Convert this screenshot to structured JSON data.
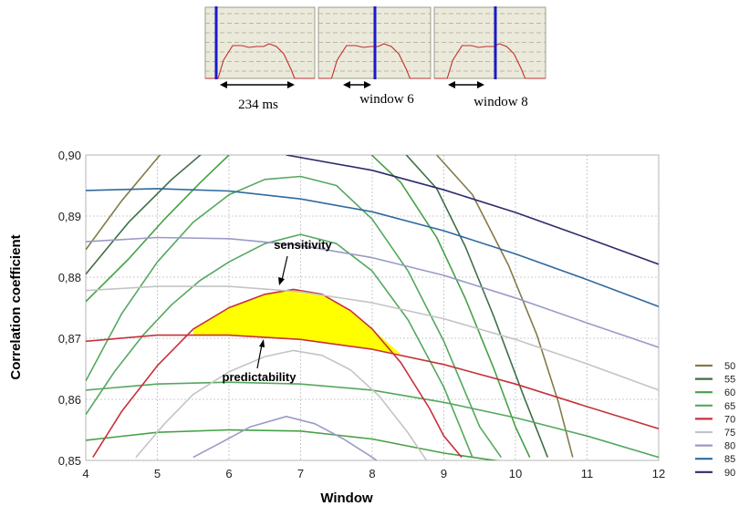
{
  "windows_panel": {
    "labels": [
      "234 ms",
      "window 6",
      "window 8"
    ]
  },
  "chart_data": {
    "type": "line",
    "xlabel": "Window",
    "ylabel": "Correlation coefficient",
    "xlim": [
      4,
      12
    ],
    "ylim": [
      0.85,
      0.9
    ],
    "x_ticks": [
      "4",
      "5",
      "6",
      "7",
      "8",
      "9",
      "10",
      "11",
      "12"
    ],
    "y_ticks": [
      "0,85",
      "0,86",
      "0,87",
      "0,88",
      "0,89",
      "0,90"
    ],
    "grid": true,
    "legend_position": "bottom-right",
    "legend": [
      "50",
      "55",
      "60",
      "65",
      "70",
      "75",
      "80",
      "85",
      "90"
    ],
    "annotations": [
      "sensitivity",
      "predictability"
    ],
    "highlight_color": "#ffff00",
    "series": [
      {
        "name": "50",
        "color": "#847b49",
        "lines": [
          {
            "x": [
              4.0,
              4.5,
              5.0,
              5.5
            ],
            "y": [
              0.8845,
              0.8925,
              0.8995,
              0.906
            ]
          },
          {
            "x": [
              8.9,
              9.4,
              9.9,
              10.3,
              10.6,
              10.8
            ],
            "y": [
              0.9,
              0.8935,
              0.882,
              0.8705,
              0.8595,
              0.8505
            ]
          }
        ]
      },
      {
        "name": "55",
        "color": "#3f6e46",
        "lines": [
          {
            "x": [
              4.0,
              4.6,
              5.2,
              5.7
            ],
            "y": [
              0.8805,
              0.889,
              0.896,
              0.901
            ]
          },
          {
            "x": [
              8.4,
              8.9,
              9.3,
              9.7,
              10.1,
              10.45
            ],
            "y": [
              0.901,
              0.8945,
              0.885,
              0.8735,
              0.861,
              0.8505
            ]
          }
        ]
      },
      {
        "name": "60",
        "color": "#46a046",
        "lines": [
          {
            "x": [
              4.0,
              4.6,
              5.1,
              5.6,
              6.0
            ],
            "y": [
              0.876,
              0.883,
              0.8895,
              0.8955,
              0.9
            ]
          },
          {
            "x": [
              7.9,
              8.4,
              8.9,
              9.3,
              9.7,
              10.0,
              10.2
            ],
            "y": [
              0.901,
              0.8955,
              0.8865,
              0.8765,
              0.865,
              0.8555,
              0.8505
            ]
          },
          {
            "x": [
              4.0,
              5.0,
              6.0,
              7.0,
              8.0,
              9.0,
              10.0
            ],
            "y": [
              0.8533,
              0.8546,
              0.855,
              0.8548,
              0.8535,
              0.8512,
              0.8495
            ]
          }
        ]
      },
      {
        "name": "65",
        "color": "#54a85e",
        "lines": [
          {
            "x": [
              4.0,
              4.5,
              5.0,
              5.5,
              6.0,
              6.5,
              7.0,
              7.5,
              8.0,
              8.5,
              9.0,
              9.5,
              9.8
            ],
            "y": [
              0.863,
              0.874,
              0.8825,
              0.889,
              0.8935,
              0.896,
              0.8965,
              0.895,
              0.8895,
              0.881,
              0.8695,
              0.8555,
              0.8505
            ]
          },
          {
            "x": [
              4.0,
              4.4,
              4.8,
              5.2,
              5.6,
              6.0,
              6.5,
              7.0,
              7.5,
              8.0,
              8.5,
              9.0,
              9.4
            ],
            "y": [
              0.8575,
              0.8645,
              0.8705,
              0.8755,
              0.8795,
              0.8825,
              0.8855,
              0.887,
              0.8855,
              0.881,
              0.873,
              0.862,
              0.8505
            ]
          },
          {
            "x": [
              4.0,
              5.0,
              6.0,
              7.0,
              8.0,
              9.0,
              10.0,
              11.0,
              12.0
            ],
            "y": [
              0.8615,
              0.8625,
              0.8628,
              0.8625,
              0.8615,
              0.8595,
              0.857,
              0.854,
              0.8505
            ]
          }
        ]
      },
      {
        "name": "70",
        "color": "#c8313a",
        "lines": [
          {
            "x": [
              4.0,
              5.0,
              6.0,
              7.0,
              8.0,
              9.0,
              10.0,
              11.0,
              12.0
            ],
            "y": [
              0.8695,
              0.8705,
              0.8705,
              0.8698,
              0.8682,
              0.8657,
              0.8625,
              0.8588,
              0.8552
            ]
          },
          {
            "x": [
              4.1,
              4.5,
              5.0,
              5.5,
              6.0,
              6.5,
              6.9,
              7.3,
              7.7,
              8.0,
              8.4,
              8.8,
              9.0,
              9.25
            ],
            "y": [
              0.8505,
              0.858,
              0.8655,
              0.8715,
              0.875,
              0.8772,
              0.878,
              0.8772,
              0.8745,
              0.8715,
              0.866,
              0.8585,
              0.854,
              0.8505
            ]
          }
        ]
      },
      {
        "name": "75",
        "color": "#c4c4c4",
        "lines": [
          {
            "x": [
              4.0,
              5.0,
              6.0,
              7.0,
              8.0,
              9.0,
              10.0,
              11.0,
              12.0
            ],
            "y": [
              0.8778,
              0.8785,
              0.8785,
              0.8776,
              0.8758,
              0.8732,
              0.8698,
              0.8658,
              0.8615
            ]
          },
          {
            "x": [
              4.7,
              5.1,
              5.5,
              6.0,
              6.5,
              6.9,
              7.3,
              7.7,
              8.1,
              8.5,
              8.9,
              9.1
            ],
            "y": [
              0.8505,
              0.856,
              0.8608,
              0.8645,
              0.867,
              0.868,
              0.8672,
              0.8648,
              0.8605,
              0.8545,
              0.8475,
              0.8445
            ]
          }
        ]
      },
      {
        "name": "80",
        "color": "#9a9ac8",
        "lines": [
          {
            "x": [
              4.0,
              5.0,
              6.0,
              7.0,
              8.0,
              9.0,
              10.0,
              11.0,
              12.0
            ],
            "y": [
              0.8858,
              0.8865,
              0.8863,
              0.8852,
              0.8832,
              0.8803,
              0.8766,
              0.8725,
              0.8685
            ]
          },
          {
            "x": [
              5.5,
              5.9,
              6.3,
              6.8,
              7.2,
              7.6,
              8.0,
              8.3
            ],
            "y": [
              0.8505,
              0.853,
              0.8555,
              0.8572,
              0.856,
              0.8535,
              0.8505,
              0.848
            ]
          }
        ]
      },
      {
        "name": "85",
        "color": "#2e6a9e",
        "lines": [
          {
            "x": [
              4.0,
              5.0,
              6.0,
              7.0,
              8.0,
              9.0,
              10.0,
              11.0,
              12.0
            ],
            "y": [
              0.8942,
              0.8945,
              0.8941,
              0.8928,
              0.8907,
              0.8876,
              0.8838,
              0.8796,
              0.8752
            ]
          }
        ]
      },
      {
        "name": "90",
        "color": "#2c2b6e",
        "lines": [
          {
            "x": [
              6.8,
              8.0,
              9.0,
              10.0,
              11.0,
              12.0
            ],
            "y": [
              0.9,
              0.8975,
              0.8943,
              0.8906,
              0.8864,
              0.8821
            ]
          }
        ]
      }
    ],
    "highlight_region": {
      "upper": {
        "x": [
          5.5,
          6.0,
          6.5,
          6.9,
          7.3,
          7.7,
          8.0,
          8.4
        ],
        "y": [
          0.8715,
          0.875,
          0.8772,
          0.878,
          0.8772,
          0.8745,
          0.8715,
          0.8674
        ]
      },
      "lower": {
        "x": [
          8.4,
          8.0,
          7.0,
          6.0,
          5.5
        ],
        "y": [
          0.8674,
          0.8682,
          0.8698,
          0.8705,
          0.8706
        ]
      }
    }
  }
}
